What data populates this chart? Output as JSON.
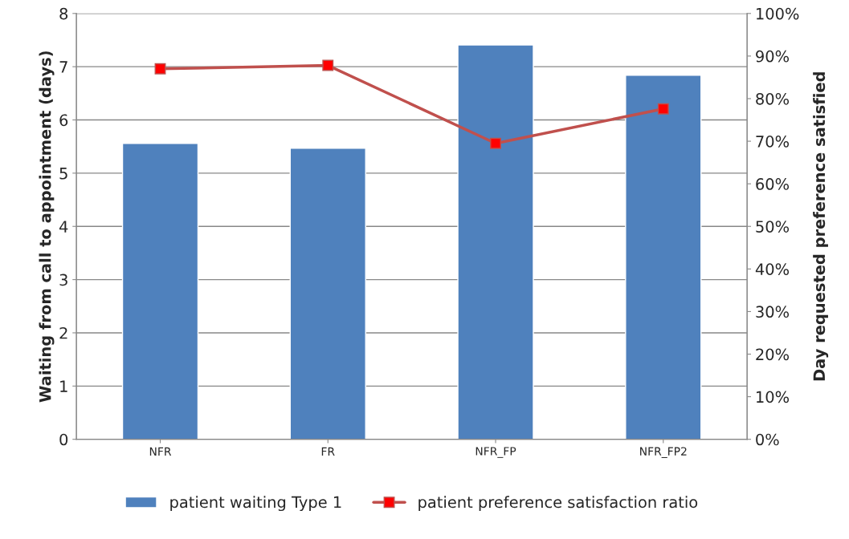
{
  "chart_data": {
    "type": "bar",
    "categories": [
      "NFR",
      "FR",
      "NFR_FP",
      "NFR_FP2"
    ],
    "series": [
      {
        "name": "patient waiting Type 1",
        "color": "#4f81bd",
        "values": [
          5.56,
          5.47,
          7.41,
          6.84
        ]
      },
      {
        "name": "patient preference satisfaction ratio",
        "type": "line",
        "axis": "y2",
        "color": "#c0504d",
        "marker": "square",
        "values": [
          87.0,
          87.8,
          69.5,
          77.6
        ]
      }
    ],
    "ylabel": "Waiting from call to appointment (days)",
    "y2label": "Day requested preference satisfied",
    "ylim": [
      0,
      8
    ],
    "yticks": [
      0,
      1,
      2,
      3,
      4,
      5,
      6,
      7,
      8
    ],
    "y2lim": [
      0,
      100
    ],
    "y2ticks": [
      {
        "value": 0,
        "label": "0%"
      },
      {
        "value": 10,
        "label": "10%"
      },
      {
        "value": 20,
        "label": "20%"
      },
      {
        "value": 30,
        "label": "30%"
      },
      {
        "value": 40,
        "label": "40%"
      },
      {
        "value": 50,
        "label": "50%"
      },
      {
        "value": 60,
        "label": "60%"
      },
      {
        "value": 70,
        "label": "70%"
      },
      {
        "value": 80,
        "label": "80%"
      },
      {
        "value": 90,
        "label": "90%"
      },
      {
        "value": 100,
        "label": "100%"
      }
    ],
    "grid": "y",
    "legend": "bottom"
  }
}
